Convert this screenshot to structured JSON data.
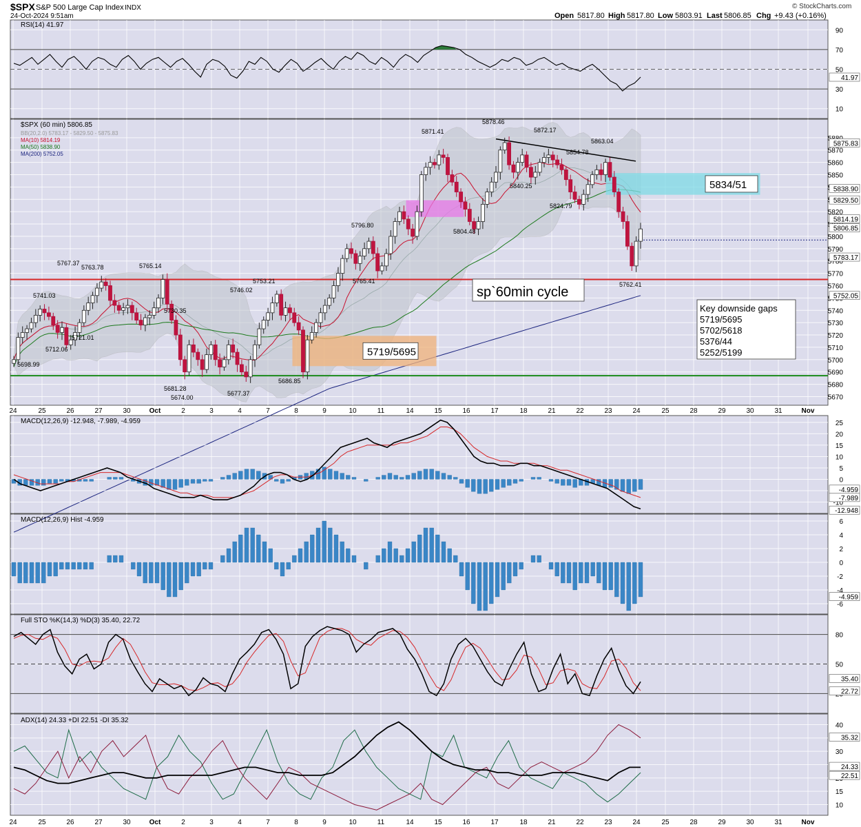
{
  "header": {
    "symbol": "$SPX",
    "name": "S&P 500 Large Cap Index",
    "exchange": "INDX",
    "datetime": "24-Oct-2024 9:51am",
    "open_label": "Open",
    "open": "5817.80",
    "high_label": "High",
    "high": "5817.80",
    "low_label": "Low",
    "low": "5803.91",
    "last_label": "Last",
    "last": "5806.85",
    "chg_label": "Chg",
    "chg": "+9.43 (+0.16%)",
    "watermark": "© StockCharts.com"
  },
  "x_axis": [
    "24",
    "25",
    "26",
    "27",
    "30",
    "Oct",
    "2",
    "3",
    "4",
    "7",
    "8",
    "9",
    "10",
    "11",
    "14",
    "15",
    "16",
    "17",
    "18",
    "21",
    "22",
    "23",
    "24",
    "25",
    "28",
    "29",
    "30",
    "31",
    "Nov"
  ],
  "chart_data": [
    {
      "type": "line",
      "title": "RSI(14) 41.97",
      "ylim": [
        0,
        100
      ],
      "y_ticks": [
        10,
        30,
        50,
        70,
        90
      ],
      "reference_lines": [
        30,
        50,
        70
      ],
      "series": [
        {
          "name": "RSI(14)",
          "values": [
            56,
            54,
            58,
            62,
            55,
            60,
            65,
            58,
            52,
            60,
            63,
            57,
            50,
            58,
            62,
            60,
            55,
            52,
            60,
            64,
            58,
            50,
            56,
            60,
            62,
            57,
            52,
            58,
            61,
            55,
            48,
            42,
            55,
            60,
            58,
            53,
            44,
            41,
            48,
            58,
            55,
            62,
            58,
            50,
            47,
            54,
            60,
            56,
            48,
            52,
            57,
            61,
            55,
            50,
            58,
            63,
            60,
            67,
            64,
            58,
            55,
            62,
            58,
            52,
            60,
            65,
            62,
            57,
            64,
            68,
            72,
            74,
            73,
            72,
            70,
            65,
            62,
            58,
            55,
            52,
            55,
            60,
            58,
            62,
            60,
            54,
            56,
            60,
            62,
            58,
            54,
            56,
            52,
            50,
            48,
            52,
            55,
            50,
            44,
            38,
            35,
            28,
            33,
            36,
            42
          ]
        }
      ],
      "last_value_label": "41.97"
    },
    {
      "type": "candlestick",
      "title": "$SPX (60 min) 5806.85",
      "ylim": [
        5663,
        5895
      ],
      "y_ticks": [
        5670,
        5680,
        5690,
        5700,
        5710,
        5720,
        5730,
        5740,
        5750,
        5760,
        5770,
        5780,
        5790,
        5800,
        5810,
        5820,
        5830,
        5840,
        5850,
        5860,
        5870,
        5880
      ],
      "legend": [
        {
          "label": "BB(20,2.0) 5783.17 - 5829.50 - 5875.83",
          "color": "#999999"
        },
        {
          "label": "MA(10) 5814.19",
          "color": "#c8102e"
        },
        {
          "label": "MA(50) 5838.90",
          "color": "#1d7a1d"
        },
        {
          "label": "MA(200) 5752.05",
          "color": "#1a237e"
        }
      ],
      "closes": [
        5700,
        5718,
        5722,
        5725,
        5730,
        5736,
        5741,
        5738,
        5735,
        5728,
        5722,
        5726,
        5712,
        5716,
        5722,
        5730,
        5740,
        5746,
        5752,
        5758,
        5763,
        5760,
        5748,
        5744,
        5740,
        5742,
        5744,
        5738,
        5732,
        5728,
        5734,
        5736,
        5742,
        5750,
        5765,
        5745,
        5732,
        5720,
        5700,
        5690,
        5712,
        5706,
        5700,
        5692,
        5704,
        5712,
        5700,
        5694,
        5700,
        5712,
        5706,
        5696,
        5690,
        5686,
        5700,
        5712,
        5725,
        5732,
        5738,
        5746,
        5753,
        5736,
        5742,
        5738,
        5730,
        5724,
        5690,
        5716,
        5722,
        5730,
        5738,
        5744,
        5750,
        5760,
        5770,
        5782,
        5790,
        5786,
        5778,
        5784,
        5790,
        5796,
        5786,
        5772,
        5776,
        5786,
        5800,
        5812,
        5820,
        5814,
        5806,
        5800,
        5820,
        5850,
        5856,
        5860,
        5858,
        5866,
        5864,
        5850,
        5844,
        5836,
        5828,
        5822,
        5812,
        5806,
        5812,
        5826,
        5836,
        5844,
        5852,
        5870,
        5876,
        5858,
        5852,
        5860,
        5866,
        5856,
        5848,
        5852,
        5860,
        5864,
        5866,
        5862,
        5858,
        5854,
        5846,
        5836,
        5830,
        5826,
        5834,
        5842,
        5850,
        5854,
        5850,
        5860,
        5848,
        5836,
        5820,
        5812,
        5792,
        5776,
        5796,
        5806
      ],
      "annotations": [
        "5698.99",
        "5741.03",
        "5712.06",
        "5767.37",
        "5763.78",
        "5721.01",
        "5765.14",
        "5730.35",
        "5681.28",
        "5674.00",
        "5677.37",
        "5746.02",
        "5753.21",
        "5686.85",
        "5796.80",
        "5765.41",
        "5871.41",
        "5804.48",
        "5878.46",
        "5840.25",
        "5872.17",
        "5824.79",
        "5854.78",
        "5863.04",
        "5762.41"
      ],
      "gap_boxes": [
        {
          "label": "5719/5695",
          "low": 5695,
          "high": 5719,
          "color": "#f2b37a"
        },
        {
          "label": "",
          "low": 5816,
          "high": 5829,
          "color": "#e879e8"
        },
        {
          "label": "5834/51",
          "low": 5834,
          "high": 5851,
          "color": "#7fdbe6"
        }
      ],
      "horizontal_lines": [
        {
          "value": 5765,
          "color": "#d62728"
        },
        {
          "value": 5687,
          "color": "#1a8a1a"
        }
      ],
      "text_boxes": [
        {
          "text": "sp`60min cycle"
        },
        {
          "lines": [
            "Key downside gaps",
            "5719/5695",
            "5702/5618",
            "5376/44",
            "5252/5199"
          ]
        }
      ],
      "right_labels": [
        "5875.83",
        "5838.90",
        "5829.50",
        "5814.19",
        "5806.85",
        "5783.17",
        "5752.05"
      ]
    },
    {
      "type": "line",
      "title": "MACD(12,26,9) -12.948, -7.989, -4.959",
      "ylim": [
        -15,
        28
      ],
      "y_ticks": [
        -10,
        -5,
        0,
        5,
        10,
        15,
        20,
        25
      ],
      "series": [
        {
          "name": "MACD",
          "color": "#000000",
          "values": [
            0,
            -2,
            -3,
            -4,
            -5,
            -4,
            -3,
            -2,
            -1,
            0,
            1,
            2,
            3,
            4,
            5,
            4,
            3,
            1,
            0,
            -1,
            -2,
            -4,
            -5,
            -6,
            -7,
            -8,
            -8,
            -8,
            -7,
            -8,
            -9,
            -9,
            -9,
            -8,
            -7,
            -5,
            -3,
            0,
            2,
            3,
            3,
            2,
            0,
            -1,
            0,
            2,
            5,
            8,
            11,
            14,
            15,
            16,
            17,
            18,
            16,
            15,
            14,
            16,
            17,
            18,
            19,
            20,
            22,
            24,
            26,
            25,
            22,
            18,
            14,
            10,
            8,
            7,
            7,
            6,
            6,
            6,
            7,
            7,
            6,
            6,
            5,
            4,
            3,
            2,
            1,
            0,
            -1,
            -2,
            -3,
            -4,
            -6,
            -8,
            -10,
            -12,
            -13
          ]
        },
        {
          "name": "Signal",
          "color": "#d62728",
          "values": [
            2,
            1,
            0,
            -1,
            -2,
            -2,
            -2,
            -2,
            -1,
            -1,
            0,
            1,
            2,
            3,
            3,
            3,
            3,
            2,
            1,
            0,
            -1,
            -2,
            -3,
            -4,
            -5,
            -6,
            -6,
            -7,
            -7,
            -7,
            -8,
            -8,
            -8,
            -8,
            -7,
            -6,
            -5,
            -3,
            -1,
            1,
            2,
            2,
            1,
            1,
            1,
            2,
            3,
            5,
            7,
            10,
            12,
            13,
            14,
            15,
            15,
            15,
            15,
            15,
            16,
            16,
            17,
            18,
            19,
            21,
            23,
            23,
            22,
            20,
            17,
            14,
            12,
            10,
            9,
            8,
            8,
            7,
            7,
            7,
            7,
            6,
            6,
            5,
            4,
            4,
            3,
            2,
            1,
            0,
            -1,
            -2,
            -3,
            -5,
            -6,
            -7,
            -8
          ]
        }
      ],
      "right_labels": [
        "-4.959",
        "-7.989",
        "-12.948"
      ]
    },
    {
      "type": "bar",
      "title": "MACD(12,26,9) Hist -4.959",
      "ylim": [
        -7.5,
        7
      ],
      "y_ticks": [
        -6,
        -4,
        -2,
        0,
        2,
        4,
        6
      ],
      "values": [
        -2,
        -3,
        -3,
        -3,
        -3,
        -3,
        -2,
        -2,
        -1,
        -1,
        -1,
        -1,
        -1,
        -1,
        0,
        0,
        1,
        1,
        1,
        0,
        -1,
        -2,
        -3,
        -3,
        -3,
        -4,
        -5,
        -5,
        -4,
        -3,
        -2,
        -2,
        -1,
        -1,
        0,
        1,
        2,
        3,
        4,
        5,
        5,
        4,
        3,
        2,
        -1,
        -2,
        -1,
        1,
        2,
        3,
        4,
        5,
        6,
        5,
        4,
        3,
        2,
        1,
        0,
        -1,
        0,
        1,
        2,
        3,
        2,
        1,
        2,
        3,
        4,
        5,
        5,
        4,
        3,
        2,
        1,
        -2,
        -4,
        -6,
        -7,
        -7,
        -6,
        -5,
        -4,
        -3,
        -2,
        -1,
        0,
        1,
        1,
        0,
        -1,
        -2,
        -3,
        -3,
        -4,
        -3,
        -3,
        -2,
        -3,
        -4,
        -4,
        -5,
        -6,
        -7,
        -6,
        -5
      ]
    },
    {
      "type": "line",
      "title": "Full STO %K(14,3) %D(3) 35.40, 22.72",
      "ylim": [
        0,
        100
      ],
      "y_ticks": [
        20,
        50,
        80
      ],
      "reference_lines": [
        20,
        50,
        80
      ],
      "series": [
        {
          "name": "%K",
          "color": "#000000",
          "values": [
            78,
            82,
            76,
            70,
            80,
            85,
            62,
            48,
            40,
            55,
            60,
            45,
            50,
            72,
            80,
            75,
            55,
            42,
            30,
            22,
            35,
            30,
            25,
            28,
            18,
            24,
            36,
            30,
            28,
            22,
            40,
            55,
            62,
            70,
            82,
            85,
            75,
            60,
            25,
            30,
            68,
            78,
            84,
            88,
            86,
            84,
            80,
            62,
            70,
            75,
            82,
            84,
            86,
            80,
            65,
            55,
            40,
            22,
            18,
            30,
            55,
            70,
            76,
            68,
            55,
            42,
            32,
            28,
            45,
            60,
            72,
            40,
            22,
            25,
            45,
            60,
            30,
            40,
            20,
            18,
            38,
            55,
            66,
            44,
            28,
            20,
            32
          ]
        },
        {
          "name": "%D",
          "color": "#d62728",
          "values": [
            76,
            79,
            80,
            76,
            75,
            79,
            76,
            65,
            50,
            48,
            52,
            53,
            52,
            56,
            67,
            76,
            70,
            57,
            42,
            31,
            29,
            29,
            30,
            28,
            24,
            23,
            26,
            30,
            31,
            27,
            30,
            39,
            52,
            62,
            71,
            79,
            81,
            73,
            53,
            38,
            41,
            59,
            77,
            83,
            86,
            86,
            83,
            75,
            71,
            69,
            76,
            80,
            84,
            83,
            77,
            67,
            53,
            39,
            27,
            23,
            34,
            52,
            67,
            71,
            66,
            55,
            43,
            34,
            35,
            44,
            59,
            57,
            45,
            29,
            31,
            43,
            45,
            43,
            30,
            26,
            25,
            37,
            53,
            55,
            46,
            31,
            23
          ]
        }
      ],
      "right_labels": [
        "35.40",
        "22.72"
      ]
    },
    {
      "type": "line",
      "title": "ADX(14) 24.33 +DI 22.51 -DI 35.32",
      "ylim": [
        6,
        44
      ],
      "y_ticks": [
        10,
        15,
        20,
        25,
        30,
        35,
        40
      ],
      "series": [
        {
          "name": "ADX",
          "color": "#000000",
          "values": [
            24,
            23,
            21,
            19,
            18,
            18,
            19,
            20,
            21,
            22,
            22,
            21,
            20,
            20,
            21,
            21,
            21,
            21,
            21,
            22,
            23,
            24,
            24,
            23,
            22,
            22,
            21,
            21,
            21,
            22,
            25,
            28,
            32,
            36,
            39,
            41,
            38,
            34,
            30,
            27,
            25,
            24,
            23,
            23,
            22,
            22,
            21,
            21,
            21,
            22,
            22,
            22,
            21,
            20,
            19,
            22,
            24,
            24
          ]
        },
        {
          "name": "+DI",
          "color": "#1d6b47",
          "values": [
            30,
            32,
            27,
            22,
            20,
            38,
            26,
            30,
            24,
            20,
            16,
            14,
            12,
            24,
            28,
            36,
            30,
            26,
            18,
            12,
            14,
            22,
            30,
            38,
            26,
            18,
            14,
            12,
            20,
            24,
            34,
            38,
            30,
            24,
            20,
            16,
            14,
            12,
            30,
            28,
            36,
            24,
            22,
            20,
            28,
            34,
            24,
            20,
            18,
            16,
            22,
            20,
            18,
            14,
            11,
            14,
            18,
            22
          ]
        },
        {
          "name": "-DI",
          "color": "#8b1a3a",
          "values": [
            16,
            14,
            18,
            24,
            30,
            20,
            28,
            22,
            30,
            34,
            28,
            32,
            36,
            24,
            16,
            14,
            20,
            24,
            30,
            34,
            26,
            20,
            16,
            12,
            18,
            24,
            22,
            18,
            16,
            14,
            12,
            10,
            9,
            8,
            10,
            12,
            14,
            18,
            12,
            10,
            14,
            18,
            22,
            24,
            18,
            16,
            20,
            24,
            26,
            24,
            22,
            24,
            26,
            30,
            36,
            40,
            38,
            35
          ]
        }
      ],
      "right_labels": [
        "35.32",
        "24.33",
        "22.51"
      ]
    }
  ]
}
